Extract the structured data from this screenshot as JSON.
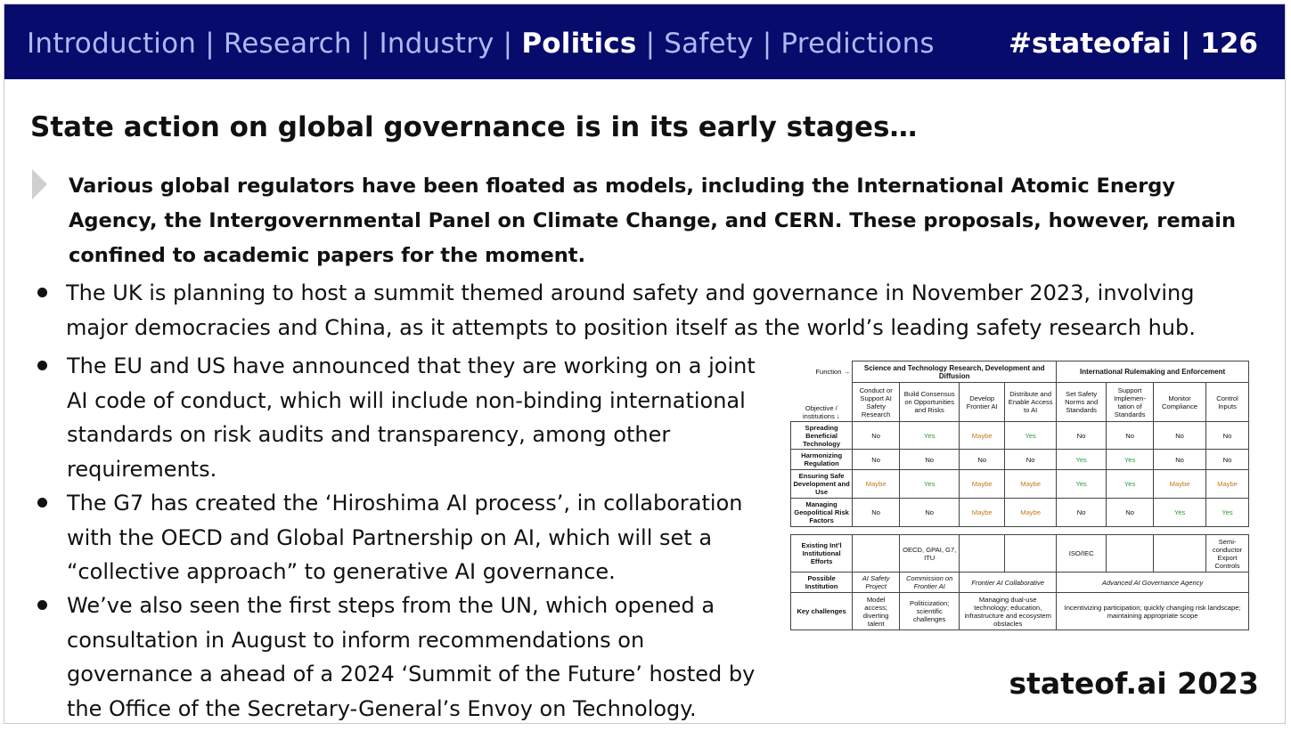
{
  "header": {
    "nav": [
      "Introduction",
      "Research",
      "Industry",
      "Politics",
      "Safety",
      "Predictions"
    ],
    "active_nav": "Politics",
    "separator": " | ",
    "page_id": "#stateofai | 126",
    "colors": {
      "bar": "#070b6b",
      "nav_text": "#aeb8f2",
      "active": "#ffffff"
    }
  },
  "slide": {
    "title": "State action on global governance is in its early stages…",
    "lead": "Various global regulators have been floated as models, including the International Atomic Energy Agency, the Intergovernmental Panel on Climate Change, and CERN. These proposals, however, remain confined to academic papers for the moment.",
    "bullets": [
      "The UK is planning to host a summit themed around safety and governance in November 2023, involving major democracies and China, as it attempts to position itself as the world’s leading safety research hub.",
      "The EU and US have announced that they are working on a joint AI code of conduct, which will include non-binding international standards on risk audits and transparency, among other requirements.",
      "The G7 has created the ‘Hiroshima AI process’, in collaboration with the OECD and Global Partnership on AI, which will set a “collective approach” to generative AI governance.",
      "We’ve also seen the first steps from the UN, which opened a consultation in August to inform recommendations on governance a ahead of a 2024 ‘Summit of the Future’ hosted by the Office of the Secretary-General’s Envoy on Technology."
    ],
    "footer_brand": "stateof.ai 2023"
  },
  "figure": {
    "corner_top": "Function →",
    "corner_bottom": "Objective / institutions ↓",
    "group1": "Science and Technology Research, Development and Diffusion",
    "group2": "International Rulemaking and Enforcement",
    "columns": [
      "Conduct or Support AI Safety Research",
      "Build Consensus on Opportunities and Risks",
      "Develop Frontier AI",
      "Distribute and Enable Access to AI",
      "Set Safety Norms and Standards",
      "Support Implemen-tation of Standards",
      "Monitor Compliance",
      "Control Inputs"
    ],
    "rows": [
      {
        "label": "Spreading Beneficial Technology",
        "cells": [
          "No",
          "Yes",
          "Maybe",
          "Yes",
          "No",
          "No",
          "No",
          "No"
        ]
      },
      {
        "label": "Harmonizing Regulation",
        "cells": [
          "No",
          "No",
          "No",
          "No",
          "Yes",
          "Yes",
          "No",
          "No"
        ]
      },
      {
        "label": "Ensuring Safe Development and Use",
        "cells": [
          "Maybe",
          "Yes",
          "Maybe",
          "Maybe",
          "Yes",
          "Yes",
          "Maybe",
          "Maybe"
        ]
      },
      {
        "label": "Managing Geopolitical Risk Factors",
        "cells": [
          "No",
          "No",
          "Maybe",
          "Maybe",
          "No",
          "No",
          "Yes",
          "Yes"
        ]
      }
    ],
    "existing": {
      "label": "Existing Int’l Institutional Efforts",
      "cells": [
        "",
        "OECD, GPAI, G7, ITU",
        "",
        "",
        "ISO/IEC",
        "",
        "",
        "Semi-conductor Export Controls"
      ]
    },
    "possible": {
      "label": "Possible Institution",
      "safety_project": "AI Safety Project",
      "commission": "Commission on Frontier AI",
      "collaborative": "Frontier AI Collaborative",
      "agency": "Advanced AI Governance Agency"
    },
    "challenges": {
      "label": "Key challenges",
      "c1": "Model access; diverting talent",
      "c2": "Politicization; scientific challenges",
      "c3": "Managing dual-use technology; education, infrastructure and ecosystem obstacles",
      "c4": "Incentivizing participation; quickly changing risk landscape; maintaining appropriate scope"
    }
  }
}
